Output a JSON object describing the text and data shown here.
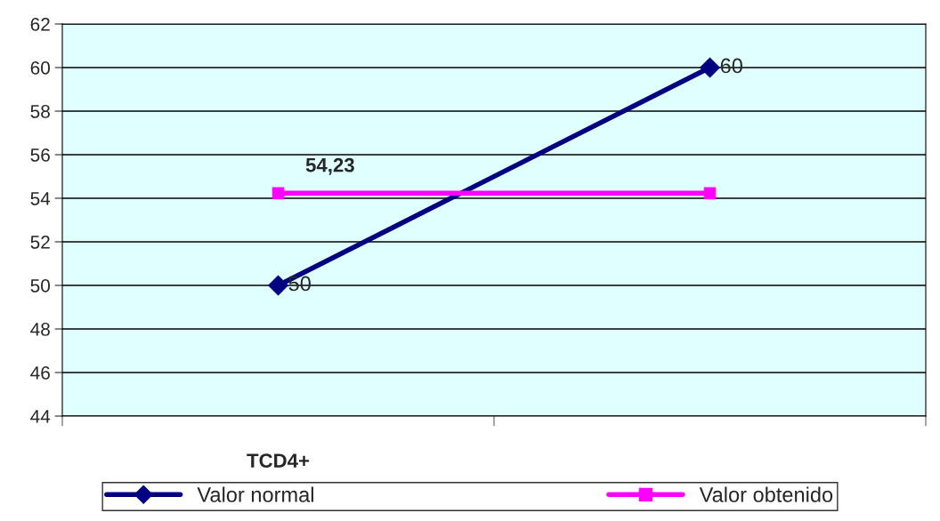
{
  "chart_data": {
    "type": "line",
    "categories": [
      "TCD4+",
      null
    ],
    "series": [
      {
        "name": "Valor normal",
        "color": "#000080",
        "values": [
          50,
          60
        ],
        "marker": "diamond",
        "value_labels": [
          "50",
          "60"
        ]
      },
      {
        "name": "Valor obtenido",
        "color": "#ff00ff",
        "values": [
          54.23,
          54.23
        ],
        "marker": "square",
        "value_labels": [
          "54,23",
          null
        ]
      }
    ],
    "ylim": [
      44,
      62
    ],
    "yticks": [
      44,
      46,
      48,
      50,
      52,
      54,
      56,
      58,
      60,
      62
    ],
    "grid": "y",
    "legend": "bottom"
  }
}
